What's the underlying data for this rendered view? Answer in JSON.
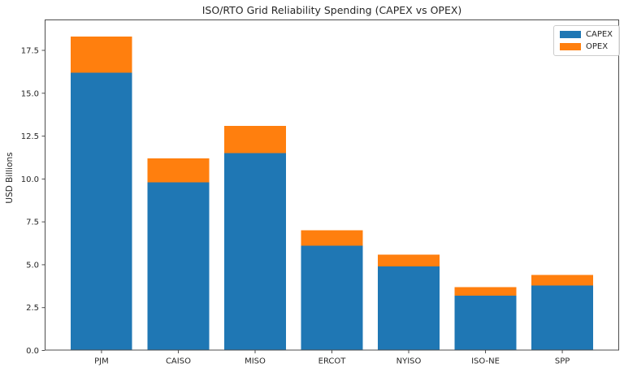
{
  "figure": {
    "title": "ISO/RTO Grid Reliability Spending (CAPEX vs OPEX)",
    "ylabel": "USD Billions"
  },
  "legend": {
    "position": "upper right",
    "entries": [
      {
        "label": "CAPEX",
        "color": "#1f77b4"
      },
      {
        "label": "OPEX",
        "color": "#ff7f0e"
      }
    ]
  },
  "chart_data": {
    "type": "bar",
    "stacked": true,
    "title": "ISO/RTO Grid Reliability Spending (CAPEX vs OPEX)",
    "xlabel": "",
    "ylabel": "USD Billions",
    "categories": [
      "PJM",
      "CAISO",
      "MISO",
      "ERCOT",
      "NYISO",
      "ISO-NE",
      "SPP"
    ],
    "series": [
      {
        "name": "CAPEX",
        "color": "#1f77b4",
        "values": [
          16.2,
          9.8,
          11.5,
          6.1,
          4.9,
          3.2,
          3.8
        ]
      },
      {
        "name": "OPEX",
        "color": "#ff7f0e",
        "values": [
          2.1,
          1.4,
          1.6,
          0.9,
          0.7,
          0.5,
          0.6
        ]
      }
    ],
    "totals": [
      18.3,
      11.2,
      13.1,
      7.0,
      5.6,
      3.7,
      4.4
    ],
    "ylim": [
      0,
      19.3
    ],
    "yticks": [
      0.0,
      2.5,
      5.0,
      7.5,
      10.0,
      12.5,
      15.0,
      17.5
    ],
    "ytick_labels": [
      "0.0",
      "2.5",
      "5.0",
      "7.5",
      "10.0",
      "12.5",
      "15.0",
      "17.5"
    ],
    "grid": false,
    "legend_position": "upper right",
    "bar_width_fraction": 0.8
  }
}
